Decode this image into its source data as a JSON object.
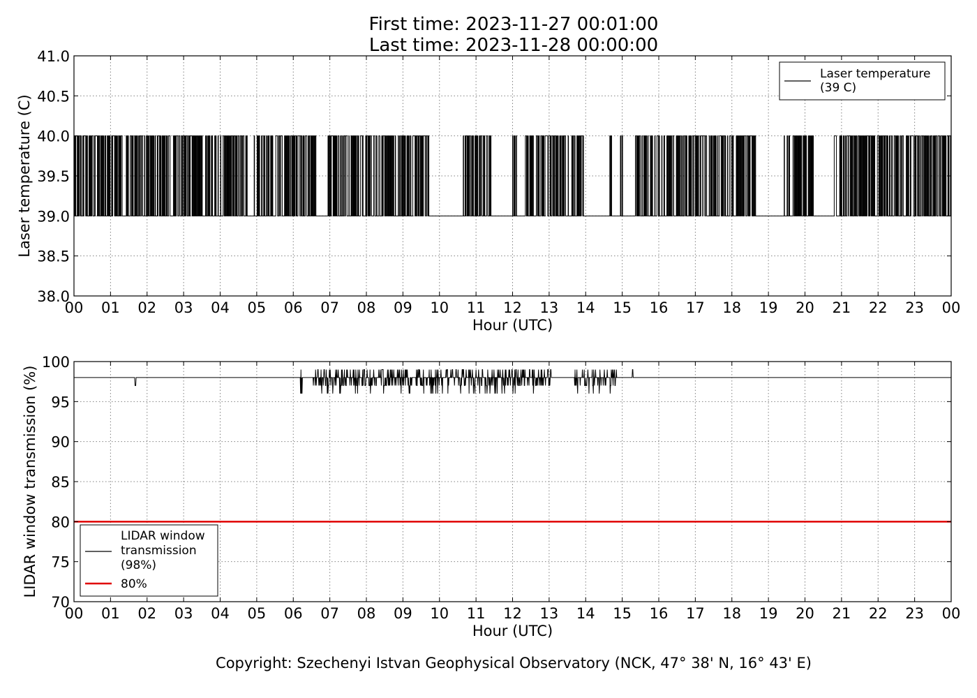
{
  "header": {
    "line1": "First time: 2023-11-27 00:01:00",
    "line2": "Last time: 2023-11-28 00:00:00"
  },
  "footer": {
    "copyright": "Copyright: Szechenyi Istvan Geophysical Observatory (NCK, 47° 38' N, 16° 43' E)"
  },
  "colors": {
    "series": "#000000",
    "threshold": "#e00000",
    "grid": "#808080"
  },
  "chart_data": [
    {
      "type": "line",
      "xlabel": "Hour (UTC)",
      "ylabel": "Laser temperature (C)",
      "xlim": [
        0,
        24
      ],
      "ylim": [
        38.0,
        41.0
      ],
      "xticks": [
        "00",
        "01",
        "02",
        "03",
        "04",
        "05",
        "06",
        "07",
        "08",
        "09",
        "10",
        "11",
        "12",
        "13",
        "14",
        "15",
        "16",
        "17",
        "18",
        "19",
        "20",
        "21",
        "22",
        "23",
        "00"
      ],
      "yticks": [
        "38.0",
        "38.5",
        "39.0",
        "39.5",
        "40.0",
        "40.5",
        "41.0"
      ],
      "grid": true,
      "legend_position": "top-right",
      "series": [
        {
          "name": "Laser temperature\n(39 C)",
          "baseline": 39.0,
          "spike_value": 40.0,
          "active_intervals": [
            [
              0.0,
              3.5
            ],
            [
              3.6,
              4.75
            ],
            [
              4.9,
              6.3
            ],
            [
              6.3,
              6.65
            ],
            [
              6.95,
              9.7
            ],
            [
              10.6,
              11.4
            ],
            [
              12.0,
              12.1
            ],
            [
              12.35,
              13.95
            ],
            [
              14.65,
              14.7
            ],
            [
              14.95,
              15.0
            ],
            [
              15.35,
              18.65
            ],
            [
              19.4,
              20.25
            ],
            [
              20.8,
              20.85
            ],
            [
              20.95,
              24.0
            ]
          ]
        }
      ]
    },
    {
      "type": "line",
      "xlabel": "Hour (UTC)",
      "ylabel": "LIDAR window transmission (%)",
      "xlim": [
        0,
        24
      ],
      "ylim": [
        70,
        100
      ],
      "xticks": [
        "00",
        "01",
        "02",
        "03",
        "04",
        "05",
        "06",
        "07",
        "08",
        "09",
        "10",
        "11",
        "12",
        "13",
        "14",
        "15",
        "16",
        "17",
        "18",
        "19",
        "20",
        "21",
        "22",
        "23",
        "00"
      ],
      "yticks": [
        "70",
        "75",
        "80",
        "85",
        "90",
        "95",
        "100"
      ],
      "grid": true,
      "legend_position": "bottom-left",
      "series": [
        {
          "name": "LIDAR window\ntransmission\n(98%)",
          "baseline": 98,
          "dips": [
            [
              1.68,
              97
            ]
          ],
          "active_intervals": [
            [
              6.2,
              6.25
            ],
            [
              6.55,
              13.05
            ],
            [
              13.7,
              14.85
            ],
            [
              15.25,
              15.3
            ]
          ]
        },
        {
          "name": "80%",
          "value": 80
        }
      ]
    }
  ]
}
